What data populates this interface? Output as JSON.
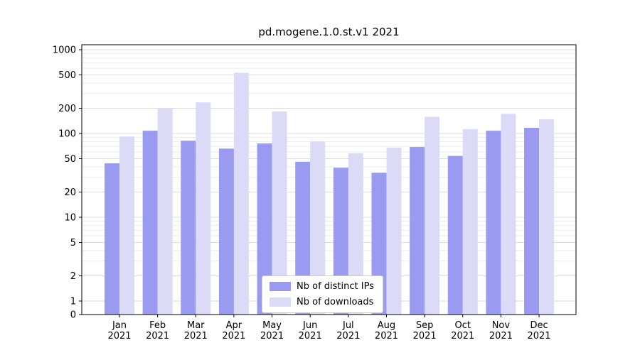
{
  "chart_data": {
    "type": "bar",
    "title": "pd.mogene.1.0.st.v1 2021",
    "categories": [
      "Jan\n2021",
      "Feb\n2021",
      "Mar\n2021",
      "Apr\n2021",
      "May\n2021",
      "Jun\n2021",
      "Jul\n2021",
      "Aug\n2021",
      "Sep\n2021",
      "Oct\n2021",
      "Nov\n2021",
      "Dec\n2021"
    ],
    "series": [
      {
        "name": "Nb of distinct IPs",
        "color": "#9a9af0",
        "values": [
          44,
          108,
          82,
          66,
          76,
          46,
          39,
          34,
          69,
          54,
          108,
          117
        ]
      },
      {
        "name": "Nb of downloads",
        "color": "#dbdbf8",
        "values": [
          92,
          200,
          235,
          530,
          183,
          80,
          58,
          68,
          158,
          113,
          172,
          148
        ]
      }
    ],
    "yscale": "log",
    "yticks": [
      1000,
      500,
      200,
      100,
      50,
      20,
      10,
      5,
      2,
      1,
      0
    ],
    "ylim": [
      0,
      1150
    ],
    "xlabel": "",
    "ylabel": "",
    "grid": true,
    "legend_position": "lower center"
  }
}
